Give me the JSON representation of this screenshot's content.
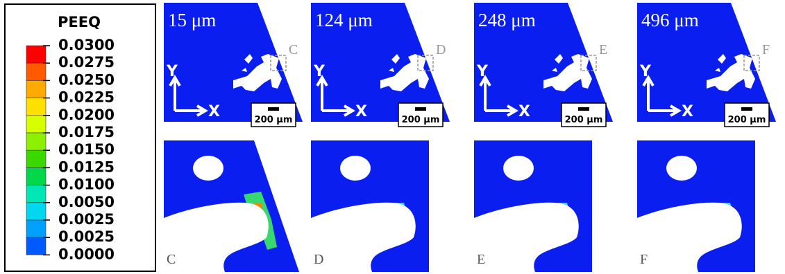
{
  "legend": {
    "title": "PEEQ",
    "labels": [
      "0.0300",
      "0.0275",
      "0.0250",
      "0.0225",
      "0.0200",
      "0.0175",
      "0.0150",
      "0.0125",
      "0.0100",
      "0.0050",
      "0.0025",
      "0.0025",
      "0.0000"
    ]
  },
  "panels": [
    {
      "thickness": "15 μm",
      "detail": "C",
      "scale_bar": "200 μm",
      "axis_y": "Y",
      "axis_x": "X"
    },
    {
      "thickness": "124 μm",
      "detail": "D",
      "scale_bar": "200 μm",
      "axis_y": "Y",
      "axis_x": "X"
    },
    {
      "thickness": "248 μm",
      "detail": "E",
      "scale_bar": "200 μm",
      "axis_y": "Y",
      "axis_x": "X"
    },
    {
      "thickness": "496 μm",
      "detail": "F",
      "scale_bar": "200 μm",
      "axis_y": "Y",
      "axis_x": "X"
    }
  ]
}
